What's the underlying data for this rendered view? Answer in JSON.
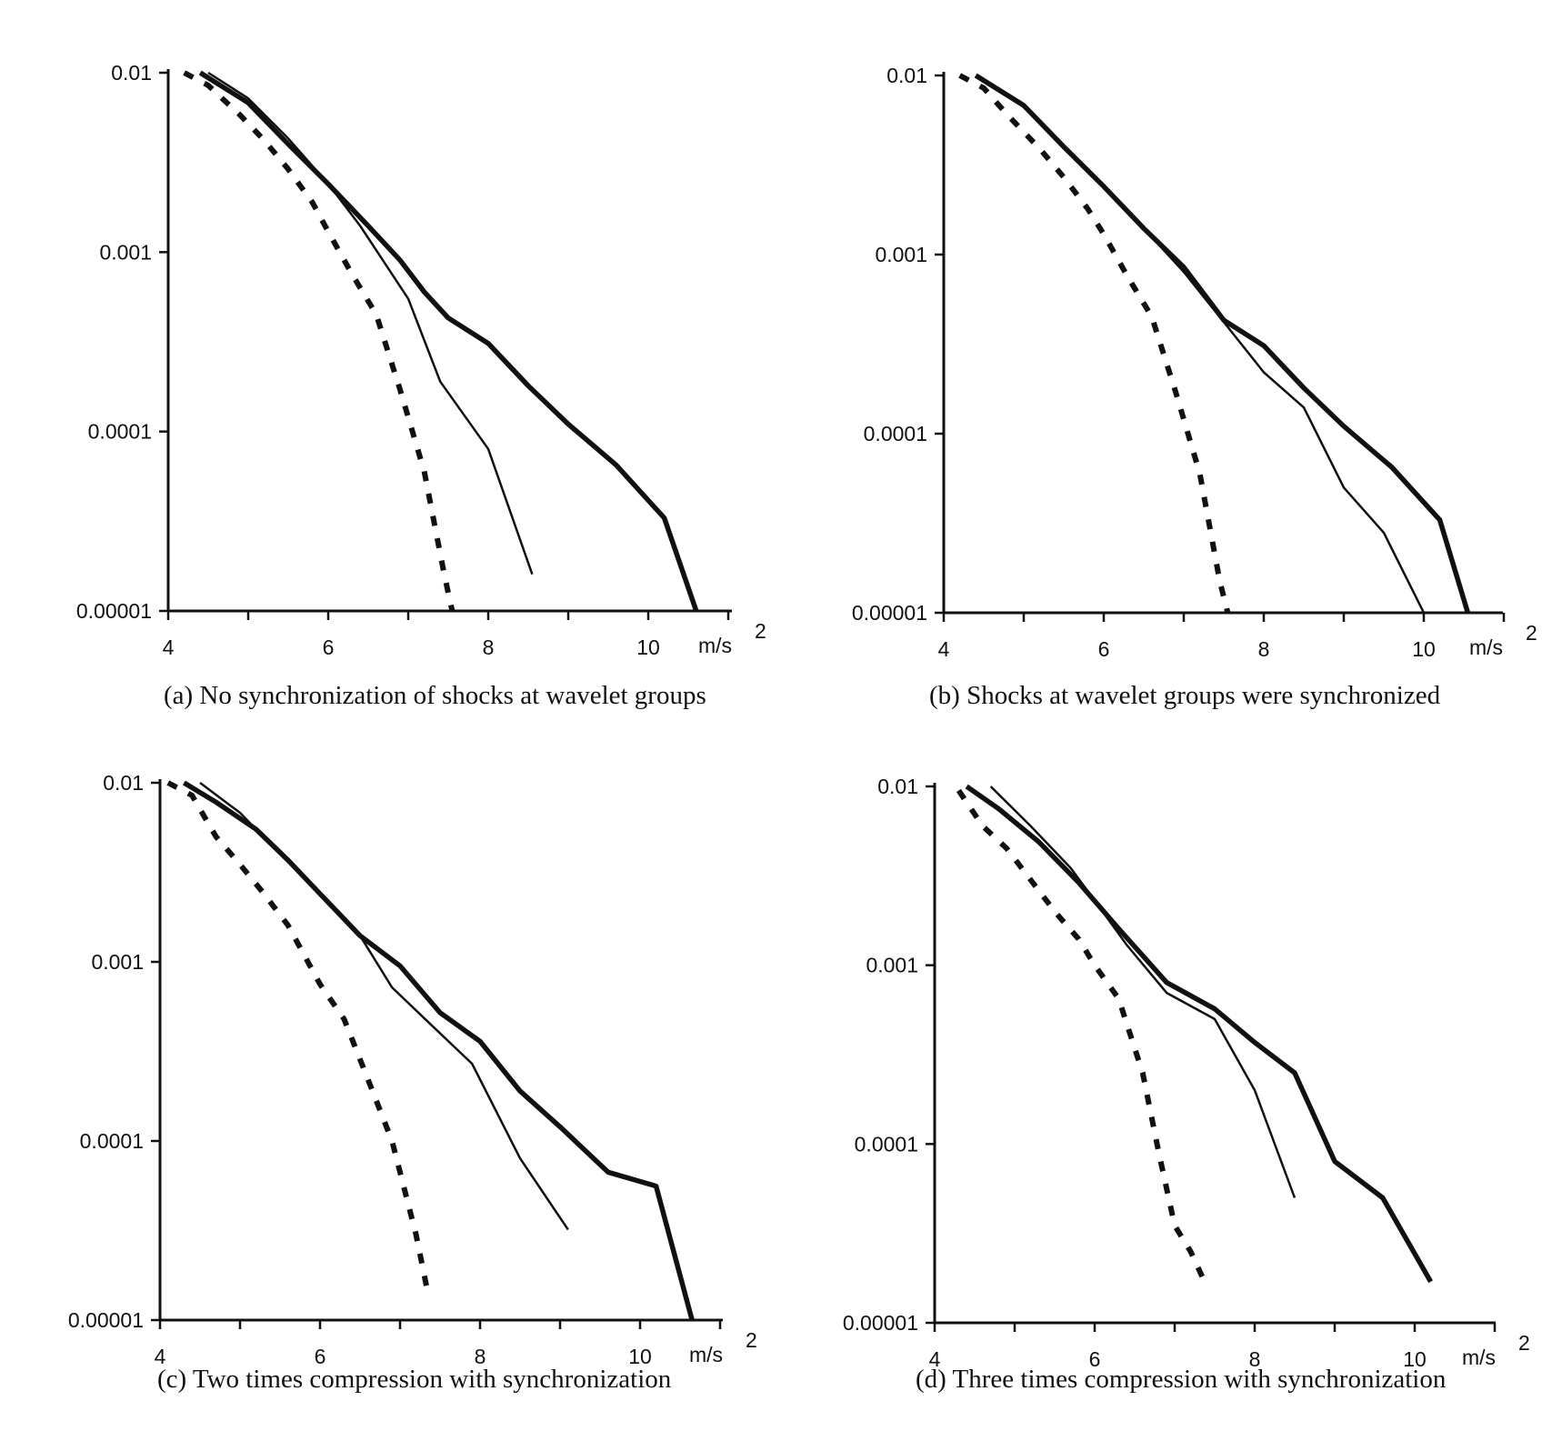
{
  "chart_data": [
    {
      "type": "line",
      "caption": "(a)  No synchronization of shocks at wavelet groups",
      "xlim": [
        4,
        11
      ],
      "ylim": [
        1e-05,
        0.01
      ],
      "yscale": "log",
      "xticks": [
        4,
        6,
        8,
        10
      ],
      "yticks": [
        0.01,
        0.001,
        0.0001,
        1e-05
      ],
      "xtick_labels": [
        "4",
        "6",
        "8",
        "10"
      ],
      "ytick_labels": [
        "0.01",
        "0.001",
        "0.0001",
        "0.00001"
      ],
      "xunit": "m/s",
      "xunit_sup": "2",
      "series": [
        {
          "style": "dashed",
          "x": [
            4.2,
            4.5,
            4.9,
            5.2,
            5.5,
            5.8,
            6.0,
            6.3,
            6.6,
            6.9,
            7.2,
            7.45,
            7.55
          ],
          "y": [
            0.01,
            0.0085,
            0.0058,
            0.0042,
            0.0029,
            0.0019,
            0.0013,
            0.00075,
            0.00045,
            0.00017,
            6e-05,
            1.6e-05,
            1e-05
          ]
        },
        {
          "style": "thin",
          "x": [
            4.5,
            5.0,
            5.5,
            6.0,
            6.4,
            7.0,
            7.4,
            8.0,
            8.55
          ],
          "y": [
            0.01,
            0.0072,
            0.0043,
            0.0024,
            0.0014,
            0.00055,
            0.00019,
            8e-05,
            1.6e-05
          ]
        },
        {
          "style": "thick",
          "x": [
            4.4,
            5.0,
            5.5,
            6.0,
            6.5,
            6.9,
            7.2,
            7.5,
            8.0,
            8.5,
            9.0,
            9.6,
            10.2,
            10.6
          ],
          "y": [
            0.01,
            0.0068,
            0.004,
            0.0024,
            0.0014,
            0.0009,
            0.0006,
            0.00043,
            0.00031,
            0.00018,
            0.00011,
            6.5e-05,
            3.3e-05,
            1e-05
          ]
        }
      ]
    },
    {
      "type": "line",
      "caption": "(b)  Shocks at wavelet groups were synchronized",
      "xlim": [
        4,
        11
      ],
      "ylim": [
        1e-05,
        0.01
      ],
      "yscale": "log",
      "xticks": [
        4,
        6,
        8,
        10
      ],
      "yticks": [
        0.01,
        0.001,
        0.0001,
        1e-05
      ],
      "xtick_labels": [
        "4",
        "6",
        "8",
        "10"
      ],
      "ytick_labels": [
        "0.01",
        "0.001",
        "0.0001",
        "0.00001"
      ],
      "xunit": "m/s",
      "xunit_sup": "2",
      "series": [
        {
          "style": "dashed",
          "x": [
            4.2,
            4.5,
            4.8,
            5.2,
            5.5,
            5.8,
            6.0,
            6.3,
            6.6,
            6.9,
            7.2,
            7.45,
            7.55
          ],
          "y": [
            0.01,
            0.0085,
            0.006,
            0.0039,
            0.0027,
            0.0018,
            0.0013,
            0.00075,
            0.00045,
            0.00017,
            6e-05,
            1.5e-05,
            1e-05
          ]
        },
        {
          "style": "thin",
          "x": [
            4.4,
            5.0,
            5.5,
            6.0,
            6.5,
            7.0,
            7.5,
            8.0,
            8.5,
            9.0,
            9.5,
            10.0
          ],
          "y": [
            0.01,
            0.0068,
            0.004,
            0.0024,
            0.0014,
            0.0008,
            0.00042,
            0.00022,
            0.00014,
            5e-05,
            2.8e-05,
            1e-05
          ]
        },
        {
          "style": "thick",
          "x": [
            4.4,
            5.0,
            5.5,
            6.0,
            6.5,
            7.0,
            7.5,
            8.0,
            8.5,
            9.0,
            9.6,
            10.2,
            10.55
          ],
          "y": [
            0.01,
            0.0068,
            0.004,
            0.0024,
            0.0014,
            0.00085,
            0.00043,
            0.00031,
            0.00018,
            0.00011,
            6.5e-05,
            3.3e-05,
            1e-05
          ]
        }
      ]
    },
    {
      "type": "line",
      "caption": "(c)  Two times compression with synchronization",
      "xlim": [
        4,
        11
      ],
      "ylim": [
        1e-05,
        0.01
      ],
      "yscale": "log",
      "xticks": [
        4,
        6,
        8,
        10
      ],
      "yticks": [
        0.01,
        0.001,
        0.0001,
        1e-05
      ],
      "xtick_labels": [
        "4",
        "6",
        "8",
        "10"
      ],
      "ytick_labels": [
        "0.01",
        "0.001",
        "0.0001",
        "0.00001"
      ],
      "xunit": "m/s",
      "xunit_sup": "2",
      "series": [
        {
          "style": "dashed",
          "x": [
            4.1,
            4.4,
            4.7,
            5.0,
            5.3,
            5.6,
            6.0,
            6.3,
            6.6,
            6.9,
            7.2,
            7.35
          ],
          "y": [
            0.01,
            0.0085,
            0.005,
            0.0035,
            0.0024,
            0.0016,
            0.00075,
            0.00048,
            0.00022,
            0.0001,
            3e-05,
            1.4e-05
          ]
        },
        {
          "style": "thin",
          "x": [
            4.5,
            5.0,
            5.5,
            6.0,
            6.5,
            6.9,
            7.4,
            7.9,
            8.5,
            9.1
          ],
          "y": [
            0.01,
            0.0068,
            0.004,
            0.0024,
            0.0014,
            0.00072,
            0.00044,
            0.00027,
            8e-05,
            3.2e-05
          ]
        },
        {
          "style": "thick",
          "x": [
            4.3,
            4.7,
            5.2,
            5.6,
            6.0,
            6.5,
            7.0,
            7.5,
            8.0,
            8.5,
            9.0,
            9.6,
            10.2,
            10.65
          ],
          "y": [
            0.01,
            0.0078,
            0.0055,
            0.0037,
            0.0024,
            0.0014,
            0.00095,
            0.00052,
            0.00036,
            0.00019,
            0.00012,
            6.7e-05,
            5.6e-05,
            1e-05
          ]
        }
      ]
    },
    {
      "type": "line",
      "caption": "(d)  Three times compression with synchronization",
      "xlim": [
        4,
        11
      ],
      "ylim": [
        1e-05,
        0.01
      ],
      "yscale": "log",
      "xticks": [
        4,
        6,
        8,
        10
      ],
      "yticks": [
        0.01,
        0.001,
        0.0001,
        1e-05
      ],
      "xtick_labels": [
        "4",
        "6",
        "8",
        "10"
      ],
      "ytick_labels": [
        "0.01",
        "0.001",
        "0.0001",
        "0.00001"
      ],
      "xunit": "m/s",
      "xunit_sup": "2",
      "series": [
        {
          "style": "dashed",
          "x": [
            4.3,
            4.6,
            4.9,
            5.2,
            5.5,
            5.8,
            6.0,
            6.3,
            6.6,
            6.8,
            7.0,
            7.2,
            7.4
          ],
          "y": [
            0.0095,
            0.006,
            0.0045,
            0.003,
            0.002,
            0.0014,
            0.001,
            0.00065,
            0.00025,
            9e-05,
            3.5e-05,
            2.5e-05,
            1.6e-05
          ]
        },
        {
          "style": "thin",
          "x": [
            4.7,
            5.2,
            5.7,
            6.0,
            6.4,
            6.9,
            7.5,
            8.0,
            8.5
          ],
          "y": [
            0.01,
            0.006,
            0.0035,
            0.0023,
            0.0013,
            0.0007,
            0.0005,
            0.0002,
            5e-05
          ]
        },
        {
          "style": "thick",
          "x": [
            4.4,
            4.8,
            5.3,
            5.8,
            6.3,
            6.9,
            7.5,
            8.0,
            8.5,
            9.0,
            9.6,
            10.2
          ],
          "y": [
            0.01,
            0.0075,
            0.0049,
            0.0029,
            0.0016,
            0.0008,
            0.00057,
            0.00037,
            0.00025,
            8e-05,
            5e-05,
            1.7e-05
          ]
        }
      ]
    }
  ]
}
